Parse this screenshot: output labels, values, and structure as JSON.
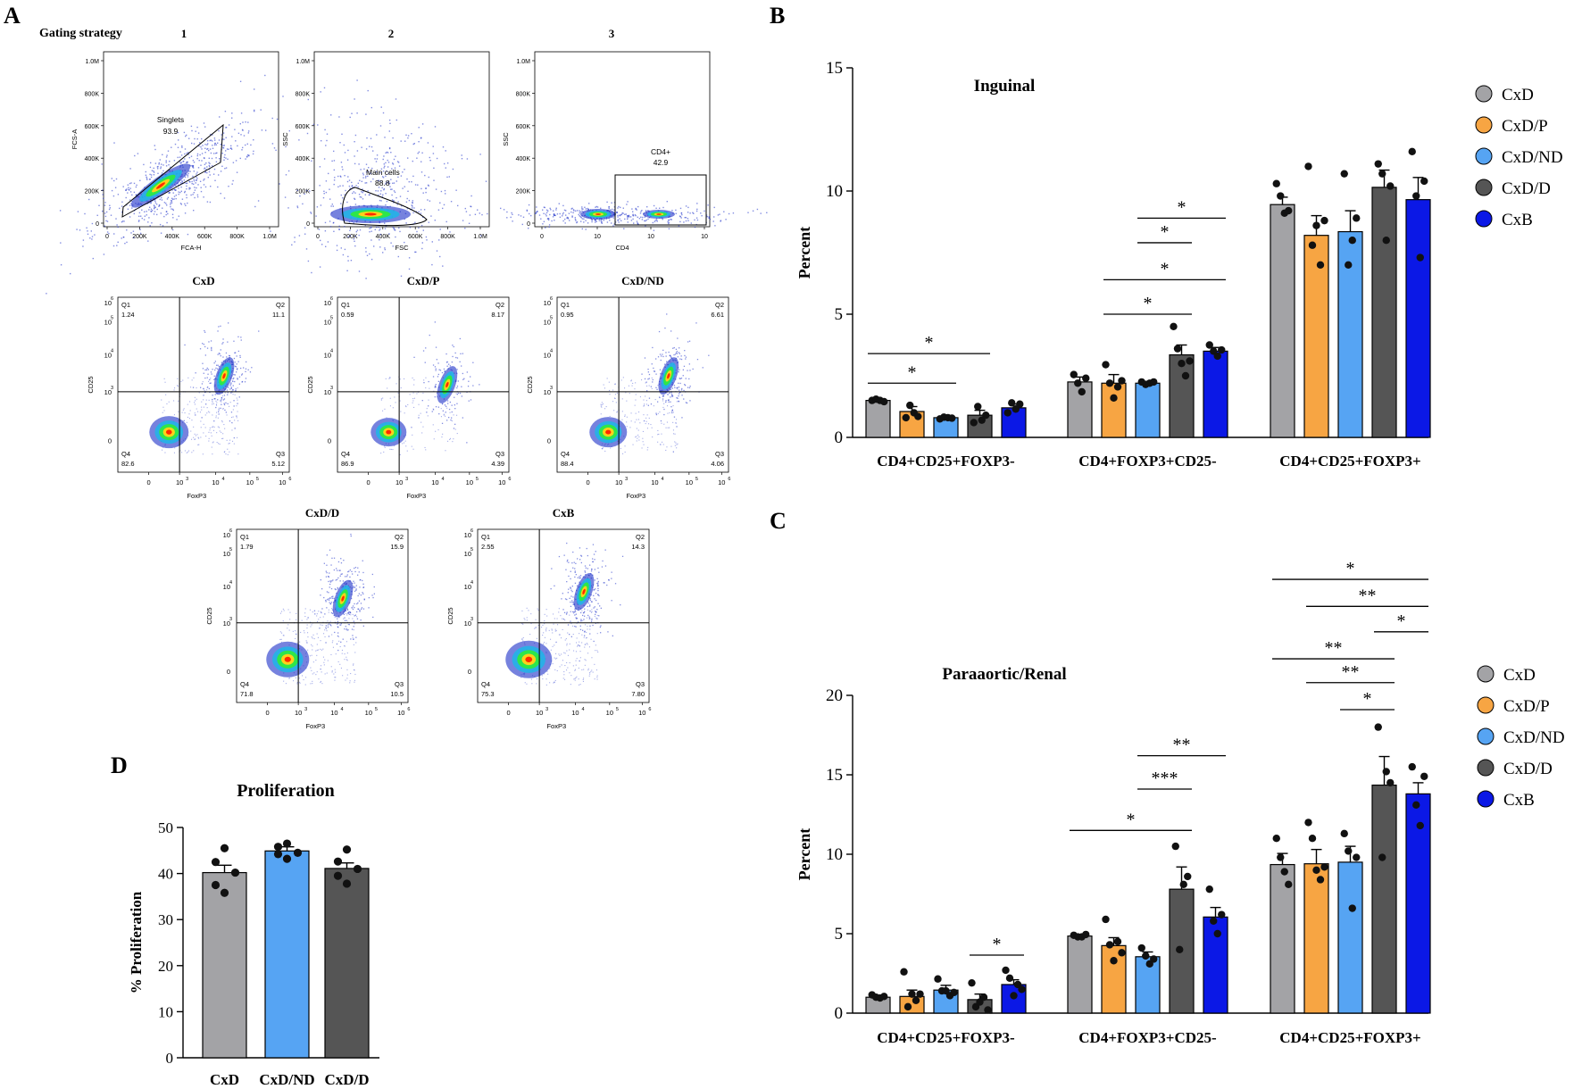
{
  "panel_letters": {
    "a": "A",
    "b": "B",
    "c": "C",
    "d": "D"
  },
  "colors": {
    "CxD": "#a3a3a6",
    "CxD/P": "#f7a543",
    "CxD/ND": "#56a4f3",
    "CxD/D": "#555555",
    "CxB": "#0b18e6",
    "dots": "#111111",
    "density_hi": "#ff2a00",
    "density_mid": "#2ee64a",
    "density_lo": "#1b2fc8"
  },
  "gating": {
    "title": "Gating strategy",
    "steps": [
      {
        "num": "1",
        "xlabel": "FCA-H",
        "ylabel": "FCS-A",
        "gate": "Singlets",
        "value": "93.9",
        "xticks": [
          "0",
          "200K",
          "400K",
          "600K",
          "800K",
          "1.0M"
        ],
        "yticks": [
          "0",
          "200K",
          "400K",
          "600K",
          "800K",
          "1.0M"
        ]
      },
      {
        "num": "2",
        "xlabel": "FSC",
        "ylabel": "SSC",
        "gate": "Main cells",
        "value": "88.8",
        "xticks": [
          "0",
          "200K",
          "400K",
          "600K",
          "800K",
          "1.0M"
        ],
        "yticks": [
          "0",
          "200K",
          "400K",
          "600K",
          "800K",
          "1.0M"
        ]
      },
      {
        "num": "3",
        "xlabel": "CD4",
        "ylabel": "SSC",
        "gate": "CD4+",
        "value": "42.9",
        "xticks": [
          "0",
          "10",
          "10",
          "10"
        ],
        "yticks": [
          "0",
          "200K",
          "400K",
          "600K",
          "800K",
          "1.0M"
        ]
      }
    ],
    "quadrant_axes": {
      "x": "FoxP3",
      "y": "CD25"
    },
    "quadrant_plots": [
      {
        "name": "CxD",
        "q1": "1.24",
        "q2": "11.1",
        "q3": "5.12",
        "q4": "82.6"
      },
      {
        "name": "CxD/P",
        "q1": "0.59",
        "q2": "8.17",
        "q3": "4.39",
        "q4": "86.9"
      },
      {
        "name": "CxD/ND",
        "q1": "0.95",
        "q2": "6.61",
        "q3": "4.06",
        "q4": "88.4"
      },
      {
        "name": "CxD/D",
        "q1": "1.79",
        "q2": "15.9",
        "q3": "10.5",
        "q4": "71.8"
      },
      {
        "name": "CxB",
        "q1": "2.55",
        "q2": "14.3",
        "q3": "7.80",
        "q4": "75.3"
      }
    ],
    "quadrant_labels": {
      "q1": "Q1",
      "q2": "Q2",
      "q3": "Q3",
      "q4": "Q4"
    },
    "log_ticks": [
      "0",
      "10",
      "10",
      "10",
      "10"
    ],
    "exponents": [
      "3",
      "4",
      "5",
      "6"
    ]
  },
  "chart_data": [
    {
      "id": "B",
      "type": "bar",
      "title": "Inguinal",
      "ylabel": "Percent",
      "xlabel": "",
      "ylim": [
        0,
        15
      ],
      "yticks": [
        0,
        5,
        10,
        15
      ],
      "categories": [
        "CD4+CD25+FOXP3-",
        "CD4+FOXP3+CD25-",
        "CD4+CD25+FOXP3+"
      ],
      "legend": [
        "CxD",
        "CxD/P",
        "CxD/ND",
        "CxD/D",
        "CxB"
      ],
      "legend_position": "right",
      "series": [
        {
          "name": "CxD",
          "values": [
            1.5,
            2.25,
            9.45
          ],
          "sem": [
            0.05,
            0.2,
            0.3
          ]
        },
        {
          "name": "CxD/P",
          "values": [
            1.05,
            2.2,
            8.2
          ],
          "sem": [
            0.2,
            0.35,
            0.8
          ]
        },
        {
          "name": "CxD/ND",
          "values": [
            0.8,
            2.2,
            8.35
          ],
          "sem": [
            0.05,
            0.05,
            0.85
          ]
        },
        {
          "name": "CxD/D",
          "values": [
            0.9,
            3.35,
            10.15
          ],
          "sem": [
            0.2,
            0.4,
            0.7
          ]
        },
        {
          "name": "CxB",
          "values": [
            1.2,
            3.5,
            9.65
          ],
          "sem": [
            0.15,
            0.15,
            0.9
          ]
        }
      ],
      "points": [
        [
          [
            1.5,
            1.55,
            1.5,
            1.45
          ],
          [
            0.8,
            1.3,
            1.0,
            0.85
          ],
          [
            0.75,
            0.82,
            0.8,
            0.78
          ],
          [
            0.6,
            1.25,
            0.7,
            0.9
          ],
          [
            1.0,
            1.4,
            1.15,
            1.35
          ]
        ],
        [
          [
            2.55,
            2.2,
            1.85,
            2.4
          ],
          [
            2.95,
            2.2,
            1.6,
            2.05,
            2.3
          ],
          [
            2.25,
            2.15,
            2.2,
            2.25
          ],
          [
            4.5,
            3.6,
            3.0,
            2.5,
            3.1
          ],
          [
            3.75,
            3.5,
            3.3,
            3.55
          ]
        ],
        [
          [
            10.3,
            9.8,
            9.1,
            9.2
          ],
          [
            11.0,
            7.8,
            8.6,
            7.0,
            8.8
          ],
          [
            10.7,
            7.0,
            8.0,
            8.9
          ],
          [
            11.1,
            10.7,
            8.0,
            10.2
          ],
          [
            11.6,
            9.8,
            7.3,
            10.4
          ]
        ]
      ],
      "significance": [
        {
          "group": 0,
          "from": 0,
          "to": 3,
          "label": "*",
          "level": 3.4
        },
        {
          "group": 0,
          "from": 0,
          "to": 2,
          "label": "*",
          "level": 2.2
        },
        {
          "group": 1,
          "from": 2,
          "to": 4,
          "label": "*",
          "level": 8.9
        },
        {
          "group": 1,
          "from": 2,
          "to": 3,
          "label": "*",
          "level": 7.9
        },
        {
          "group": 1,
          "from": 1,
          "to": 4,
          "label": "*",
          "level": 6.4
        },
        {
          "group": 1,
          "from": 1,
          "to": 3,
          "label": "*",
          "level": 5.0
        }
      ]
    },
    {
      "id": "C",
      "type": "bar",
      "title": "Paraaortic/Renal",
      "ylabel": "Percent",
      "xlabel": "",
      "ylim": [
        0,
        20
      ],
      "yticks": [
        0,
        5,
        10,
        15,
        20
      ],
      "categories": [
        "CD4+CD25+FOXP3-",
        "CD4+FOXP3+CD25-",
        "CD4+CD25+FOXP3+"
      ],
      "legend": [
        "CxD",
        "CxD/P",
        "CxD/ND",
        "CxD/D",
        "CxB"
      ],
      "legend_position": "right",
      "series": [
        {
          "name": "CxD",
          "values": [
            1.0,
            4.85,
            9.35
          ],
          "sem": [
            0.1,
            0.1,
            0.7
          ]
        },
        {
          "name": "CxD/P",
          "values": [
            1.05,
            4.25,
            9.4
          ],
          "sem": [
            0.4,
            0.5,
            0.9
          ]
        },
        {
          "name": "CxD/ND",
          "values": [
            1.45,
            3.55,
            9.5
          ],
          "sem": [
            0.3,
            0.3,
            1.0
          ]
        },
        {
          "name": "CxD/D",
          "values": [
            0.85,
            7.8,
            14.35
          ],
          "sem": [
            0.35,
            1.4,
            1.8
          ]
        },
        {
          "name": "CxB",
          "values": [
            1.8,
            6.05,
            13.8
          ],
          "sem": [
            0.3,
            0.6,
            0.7
          ]
        }
      ],
      "points": [
        [
          [
            1.15,
            1.0,
            0.95,
            1.05
          ],
          [
            2.6,
            0.4,
            1.2,
            0.8,
            1.2
          ],
          [
            2.15,
            1.4,
            1.4,
            1.1,
            1.3
          ],
          [
            1.9,
            0.4,
            0.7,
            1.0,
            0.2
          ],
          [
            2.7,
            2.2,
            1.1,
            1.8,
            1.5
          ]
        ],
        [
          [
            4.9,
            4.8,
            4.8,
            4.95
          ],
          [
            5.9,
            4.3,
            3.3,
            4.5,
            3.8
          ],
          [
            4.1,
            3.6,
            3.1,
            3.4
          ],
          [
            10.5,
            4.0,
            8.1,
            8.6
          ],
          [
            7.8,
            5.8,
            5.0,
            6.2
          ]
        ],
        [
          [
            11.0,
            9.8,
            8.9,
            8.1
          ],
          [
            12.0,
            11.0,
            9.0,
            8.4,
            9.2
          ],
          [
            11.3,
            10.2,
            6.6,
            9.8
          ],
          [
            18.0,
            9.8,
            15.2,
            14.5
          ],
          [
            15.5,
            13.1,
            11.8,
            14.9
          ]
        ]
      ],
      "significance": [
        {
          "group": 0,
          "from": 3,
          "to": 4,
          "label": "*",
          "level": 3.65
        },
        {
          "group": 1,
          "from": 0,
          "to": 3,
          "label": "*",
          "level": 11.5
        },
        {
          "group": 1,
          "from": 2,
          "to": 3,
          "label": "***",
          "level": 14.1
        },
        {
          "group": 1,
          "from": 2,
          "to": 4,
          "label": "**",
          "level": 16.2
        },
        {
          "group": 2,
          "from": 2,
          "to": 3,
          "label": "*",
          "level": 19.1
        },
        {
          "group": 2,
          "from": 1,
          "to": 3,
          "label": "**",
          "level": 20.8
        },
        {
          "group": 2,
          "from": 0,
          "to": 3,
          "label": "**",
          "level": 22.3
        },
        {
          "group": 2,
          "from": 3,
          "to": 4,
          "label": "*",
          "level": 24.0
        },
        {
          "group": 2,
          "from": 1,
          "to": 4,
          "label": "**",
          "level": 25.6
        },
        {
          "group": 2,
          "from": 0,
          "to": 4,
          "label": "*",
          "level": 27.3
        }
      ]
    },
    {
      "id": "D",
      "type": "bar",
      "title": "Proliferation",
      "ylabel": "% Proliferation",
      "xlabel": "",
      "ylim": [
        0,
        50
      ],
      "yticks": [
        0,
        10,
        20,
        30,
        40,
        50
      ],
      "categories": [
        "CxD",
        "CxD/ND",
        "CxD/D"
      ],
      "series": [
        {
          "name": "Proliferation",
          "values": [
            40.2,
            44.9,
            41.1
          ],
          "sem": [
            1.6,
            0.9,
            1.2
          ]
        }
      ],
      "points": [
        [
          45.5,
          42.5,
          40.2,
          37.5,
          35.8
        ],
        [
          46.5,
          45.8,
          44.5,
          44.2,
          43.2
        ],
        [
          45.2,
          42.6,
          41.0,
          39.5,
          37.8
        ]
      ]
    }
  ]
}
